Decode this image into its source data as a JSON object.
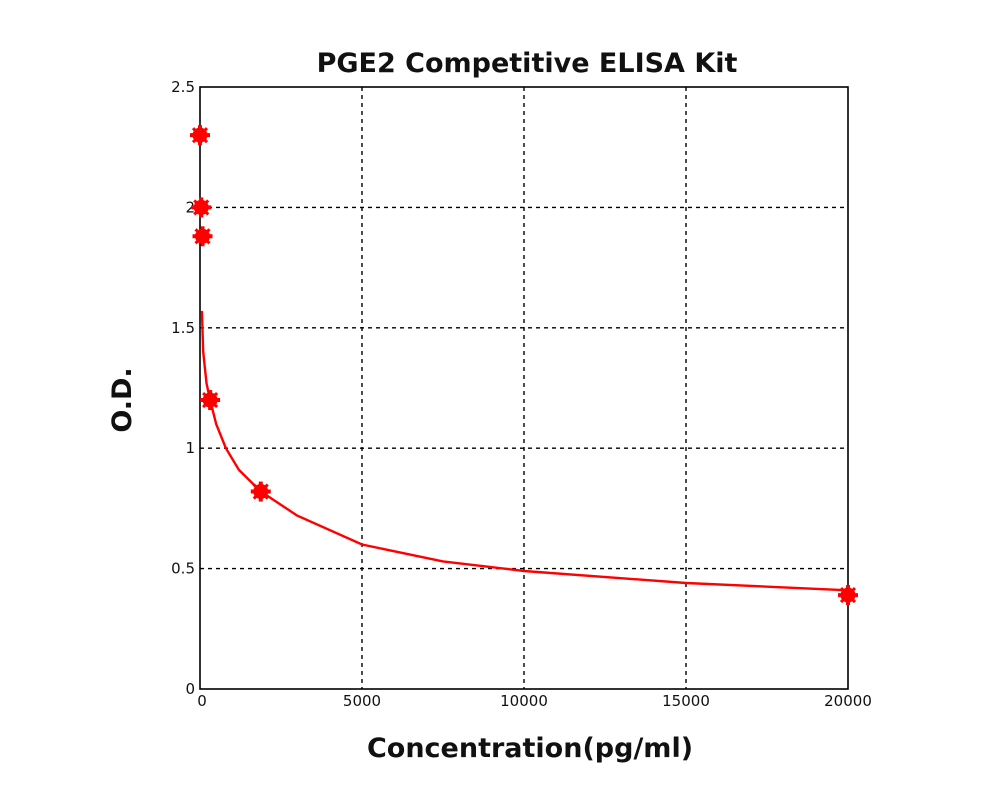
{
  "chart_data": {
    "type": "line",
    "title": "PGE2 Competitive ELISA Kit",
    "xlabel": "Concentration(pg/ml)",
    "ylabel": "O.D.",
    "xlim": [
      0,
      20000
    ],
    "ylim": [
      0,
      2.5
    ],
    "xticks": [
      "0",
      "5000",
      "10000",
      "15000",
      "20000"
    ],
    "yticks": [
      "0",
      "0.5",
      "1",
      "1.5",
      "2",
      "2.5"
    ],
    "grid": true,
    "series": [
      {
        "kind": "points",
        "color": "#ff0000",
        "x": [
          0,
          39,
          78,
          312,
          1875,
          20000
        ],
        "y": [
          2.3,
          2.0,
          1.88,
          1.2,
          0.82,
          0.39
        ]
      },
      {
        "kind": "fit-curve",
        "color": "#ff0000",
        "x": [
          60,
          100,
          200,
          312,
          500,
          800,
          1200,
          1875,
          3000,
          5000,
          7500,
          10000,
          15000,
          20000
        ],
        "y": [
          1.57,
          1.4,
          1.27,
          1.2,
          1.1,
          1.0,
          0.91,
          0.82,
          0.72,
          0.6,
          0.53,
          0.49,
          0.44,
          0.41
        ]
      }
    ]
  }
}
